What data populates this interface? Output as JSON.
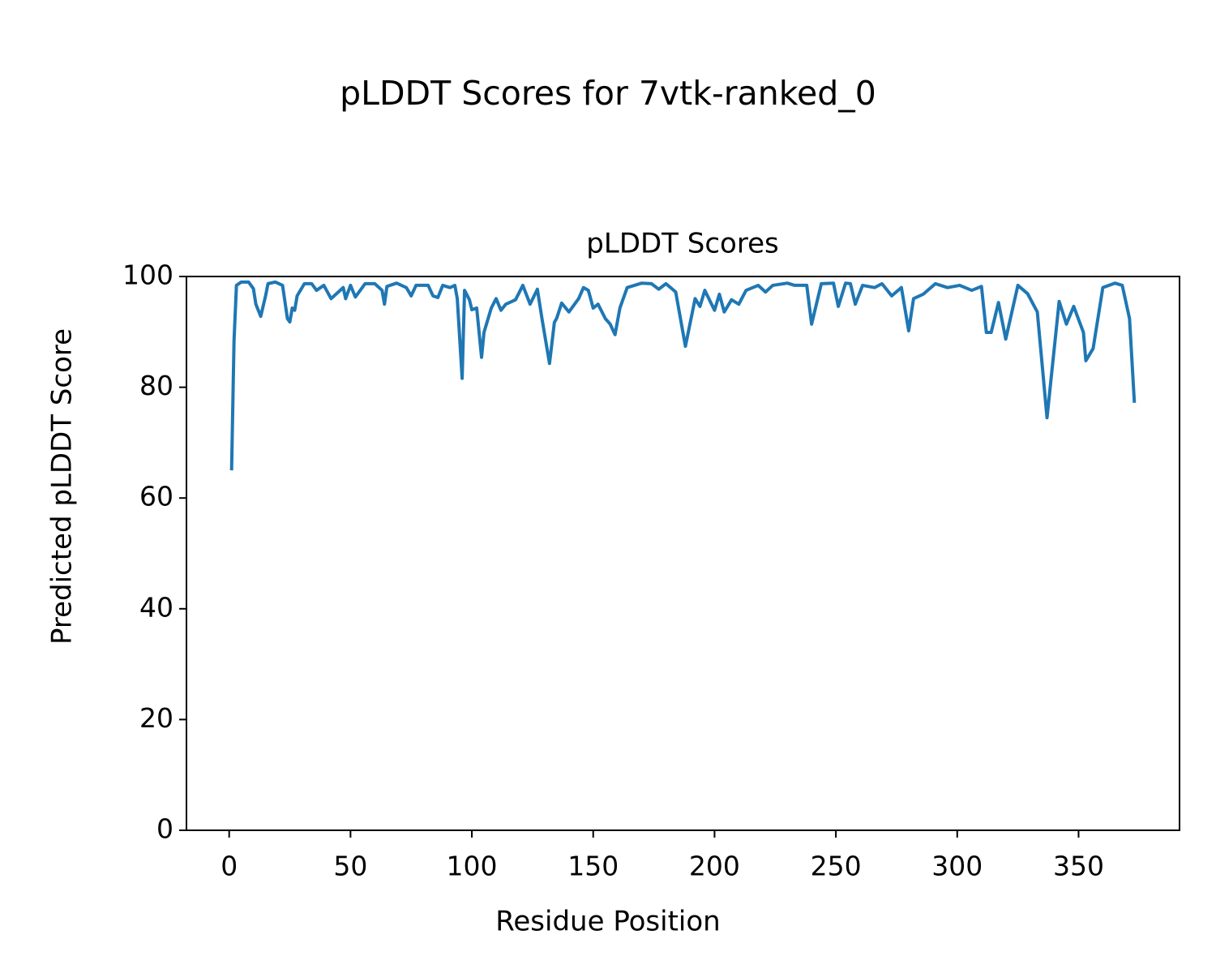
{
  "chart_data": {
    "type": "line",
    "title": "pLDDT Scores for 7vtk-ranked_0",
    "subtitle": "pLDDT Scores",
    "x_label": "Residue Position",
    "y_label": "Predicted pLDDT Score",
    "xlim": [
      -17.6,
      391.6
    ],
    "ylim": [
      0,
      100
    ],
    "xticks": [
      0,
      50,
      100,
      150,
      200,
      250,
      300,
      350
    ],
    "yticks": [
      0,
      20,
      40,
      60,
      80,
      100
    ],
    "series": [
      {
        "color": "#1f77b4",
        "x": [
          1,
          2,
          3,
          5,
          8,
          10,
          11,
          13,
          15,
          16,
          19,
          22,
          24,
          25,
          26,
          27,
          28,
          31,
          34,
          36,
          39,
          42,
          45,
          47,
          48,
          50,
          52,
          56,
          60,
          63,
          64,
          65,
          69,
          73,
          75,
          77,
          82,
          84,
          86,
          88,
          91,
          93,
          94,
          96,
          97,
          99,
          100,
          102,
          104,
          105,
          108,
          110,
          112,
          114,
          118,
          121,
          124,
          127,
          129,
          132,
          134,
          135,
          137,
          140,
          144,
          146,
          148,
          150,
          152,
          155,
          157,
          159,
          161,
          164,
          170,
          174,
          177,
          180,
          184,
          188,
          192,
          194,
          196,
          200,
          202,
          204,
          207,
          210,
          213,
          218,
          221,
          224,
          230,
          233,
          238,
          240,
          244,
          249,
          251,
          254,
          256,
          258,
          261,
          266,
          269,
          273,
          277,
          280,
          282,
          286,
          291,
          296,
          301,
          306,
          310,
          312,
          314,
          317,
          320,
          325,
          329,
          333,
          337,
          342,
          345,
          348,
          352,
          353,
          356,
          360,
          365,
          368,
          371,
          373
        ],
        "values": [
          65.0,
          88.4,
          98.4,
          99.0,
          99.0,
          97.8,
          95.0,
          92.8,
          96.5,
          98.7,
          99.0,
          98.4,
          92.4,
          91.8,
          94.3,
          93.9,
          96.5,
          98.7,
          98.7,
          97.5,
          98.4,
          96.0,
          97.2,
          98.0,
          96.0,
          98.4,
          96.3,
          98.7,
          98.7,
          97.5,
          95.0,
          98.2,
          98.8,
          98.0,
          96.5,
          98.4,
          98.4,
          96.5,
          96.2,
          98.4,
          98.0,
          98.4,
          96.0,
          81.6,
          97.5,
          95.8,
          94.0,
          94.3,
          85.4,
          89.9,
          94.3,
          96.0,
          93.9,
          95.0,
          95.8,
          98.4,
          95.0,
          97.7,
          92.1,
          84.3,
          91.7,
          92.5,
          95.2,
          93.6,
          96.0,
          98.0,
          97.5,
          94.3,
          95.0,
          92.4,
          91.4,
          89.5,
          94.3,
          98.0,
          98.8,
          98.7,
          97.7,
          98.7,
          97.2,
          87.4,
          96.0,
          94.6,
          97.5,
          93.9,
          96.8,
          93.6,
          95.8,
          95.0,
          97.5,
          98.4,
          97.2,
          98.4,
          98.8,
          98.4,
          98.4,
          91.4,
          98.7,
          98.8,
          94.6,
          98.8,
          98.7,
          95.0,
          98.4,
          98.0,
          98.7,
          96.5,
          98.0,
          90.2,
          96.0,
          96.8,
          98.7,
          98.0,
          98.4,
          97.5,
          98.2,
          89.9,
          89.9,
          95.3,
          88.7,
          98.4,
          96.9,
          93.6,
          74.5,
          95.5,
          91.4,
          94.6,
          89.9,
          84.8,
          87.0,
          98.0,
          98.8,
          98.4,
          92.4,
          77.2
        ]
      }
    ]
  }
}
